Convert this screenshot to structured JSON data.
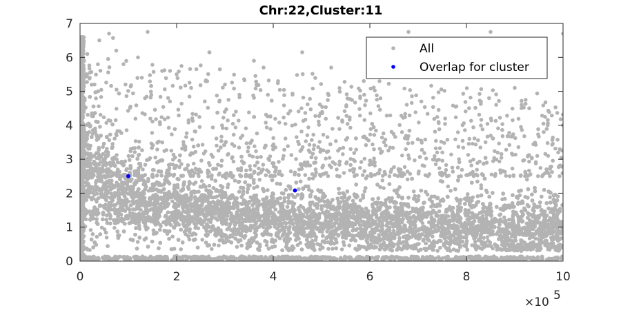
{
  "chart_data": {
    "type": "scatter",
    "title": "Chr:22,Cluster:11",
    "xlabel": "",
    "ylabel": "",
    "x_exponent_label": "×10",
    "x_exponent": "5",
    "xlim": [
      0,
      1000000
    ],
    "ylim": [
      0,
      7
    ],
    "x_ticks": [
      0,
      200000,
      400000,
      600000,
      800000,
      1000000
    ],
    "x_tick_labels": [
      "0",
      "2",
      "4",
      "6",
      "8",
      "10"
    ],
    "y_ticks": [
      0,
      1,
      2,
      3,
      4,
      5,
      6,
      7
    ],
    "y_tick_labels": [
      "0",
      "1",
      "2",
      "3",
      "4",
      "5",
      "6",
      "7"
    ],
    "grid": false,
    "legend_position": "top-right",
    "series": [
      {
        "name": "All",
        "color": "#b3b3b3",
        "description_points": "dense cloud",
        "points": [
          [
            5000,
            6.6
          ],
          [
            8000,
            5.9
          ],
          [
            15000,
            6.1
          ],
          [
            20000,
            5.4
          ],
          [
            30000,
            5.2
          ],
          [
            40000,
            6.5
          ],
          [
            60000,
            6.7
          ],
          [
            75000,
            6.2
          ],
          [
            90000,
            5.8
          ],
          [
            120000,
            6.0
          ],
          [
            140000,
            6.75
          ],
          [
            170000,
            5.6
          ],
          [
            200000,
            5.5
          ],
          [
            230000,
            5.1
          ],
          [
            260000,
            5.3
          ],
          [
            300000,
            5.2
          ],
          [
            330000,
            4.9
          ],
          [
            360000,
            5.9
          ],
          [
            380000,
            5.7
          ],
          [
            410000,
            5.3
          ],
          [
            440000,
            4.9
          ],
          [
            460000,
            6.15
          ],
          [
            520000,
            5.7
          ],
          [
            580000,
            4.8
          ],
          [
            620000,
            5.3
          ],
          [
            680000,
            6.75
          ],
          [
            750000,
            5.5
          ],
          [
            830000,
            4.7
          ],
          [
            850000,
            6.75
          ],
          [
            900000,
            5.1
          ],
          [
            930000,
            4.5
          ],
          [
            1000000,
            6.7
          ],
          [
            1000000,
            4.0
          ],
          [
            990000,
            3.2
          ],
          [
            960000,
            3.8
          ],
          [
            50000,
            0.1
          ],
          [
            120000,
            0.05
          ],
          [
            200000,
            0.15
          ],
          [
            300000,
            0.1
          ],
          [
            400000,
            0.05
          ],
          [
            500000,
            0.1
          ],
          [
            600000,
            0.08
          ],
          [
            700000,
            0.1
          ],
          [
            800000,
            0.05
          ],
          [
            900000,
            0.1
          ],
          [
            1000000,
            0.1
          ]
        ]
      },
      {
        "name": "Overlap for cluster",
        "color": "#0000ff",
        "points": [
          [
            100000,
            2.5
          ],
          [
            445000,
            2.08
          ]
        ]
      }
    ]
  }
}
